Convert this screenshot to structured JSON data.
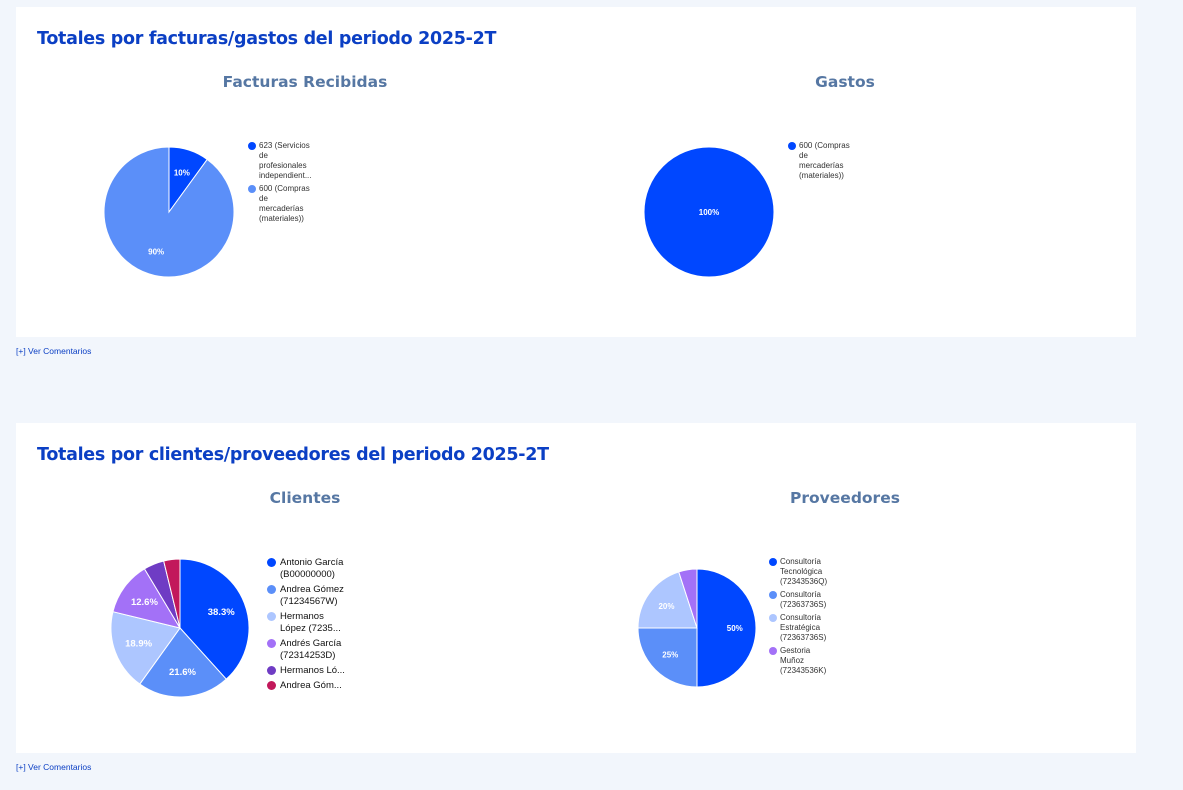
{
  "sections": [
    {
      "title": "Totales por facturas/gastos del periodo 2025-2T",
      "comments_link": "[+] Ver Comentarios"
    },
    {
      "title": "Totales por clientes/proveedores del periodo 2025-2T",
      "comments_link": "[+] Ver Comentarios"
    }
  ],
  "chart_data": [
    {
      "type": "pie",
      "title": "Facturas Recibidas",
      "legend_position": "right",
      "slices": [
        {
          "label": "623 (Servicios de profesionales independient...",
          "legend_text": "623 (Servicios\nde\nprofesionales\nindependient...",
          "value": 10,
          "data_label": "10%",
          "color": "#0047ff"
        },
        {
          "label": "600 (Compras de mercaderías (materiales))",
          "legend_text": "600 (Compras\nde\nmercaderías\n(materiales))",
          "value": 90,
          "data_label": "90%",
          "color": "#5b8ff9"
        }
      ]
    },
    {
      "type": "pie",
      "title": "Gastos",
      "legend_position": "right",
      "slices": [
        {
          "label": "600 (Compras de mercaderías (materiales))",
          "legend_text": "600 (Compras\nde\nmercaderías\n(materiales))",
          "value": 100,
          "data_label": "100%",
          "color": "#0047ff"
        }
      ]
    },
    {
      "type": "pie",
      "title": "Clientes",
      "legend_position": "right",
      "slices": [
        {
          "label": "Antonio García (B00000000)",
          "legend_text": "Antonio García\n(B00000000)",
          "value": 38.3,
          "data_label": "38.3%",
          "color": "#0047ff"
        },
        {
          "label": "Andrea Gómez (71234567W)",
          "legend_text": "Andrea Gómez\n(71234567W)",
          "value": 21.6,
          "data_label": "21.6%",
          "color": "#5b8ff9"
        },
        {
          "label": "Hermanos López (7235...",
          "legend_text": "Hermanos\nLópez (7235...",
          "value": 18.9,
          "data_label": "18.9%",
          "color": "#adc6ff"
        },
        {
          "label": "Andrés García (72314253D)",
          "legend_text": "Andrés García\n(72314253D)",
          "value": 12.6,
          "data_label": "12.6%",
          "color": "#a371f7"
        },
        {
          "label": "Hermanos Ló...",
          "legend_text": "Hermanos Ló...",
          "value": 4.8,
          "data_label": "",
          "color": "#6f3cc4"
        },
        {
          "label": "Andrea Góm...",
          "legend_text": "Andrea Góm...",
          "value": 3.8,
          "data_label": "",
          "color": "#c2185b"
        }
      ]
    },
    {
      "type": "pie",
      "title": "Proveedores",
      "legend_position": "right",
      "slices": [
        {
          "label": "Consultoría Tecnológica (72343536Q)",
          "legend_text": "Consultoría\nTecnológica\n(72343536Q)",
          "value": 50,
          "data_label": "50%",
          "color": "#0047ff"
        },
        {
          "label": "Consultoría (72363736S)",
          "legend_text": "Consultoría\n(72363736S)",
          "value": 25,
          "data_label": "25%",
          "color": "#5b8ff9"
        },
        {
          "label": "Consultoría Estratégica (72363736S)",
          "legend_text": "Consultoría\nEstratégica\n(72363736S)",
          "value": 20,
          "data_label": "20%",
          "color": "#adc6ff"
        },
        {
          "label": "Gestoría Muñoz (72343536K)",
          "legend_text": "Gestoria\nMuñoz\n(72343536K)",
          "value": 5,
          "data_label": "",
          "color": "#a371f7"
        }
      ]
    }
  ]
}
